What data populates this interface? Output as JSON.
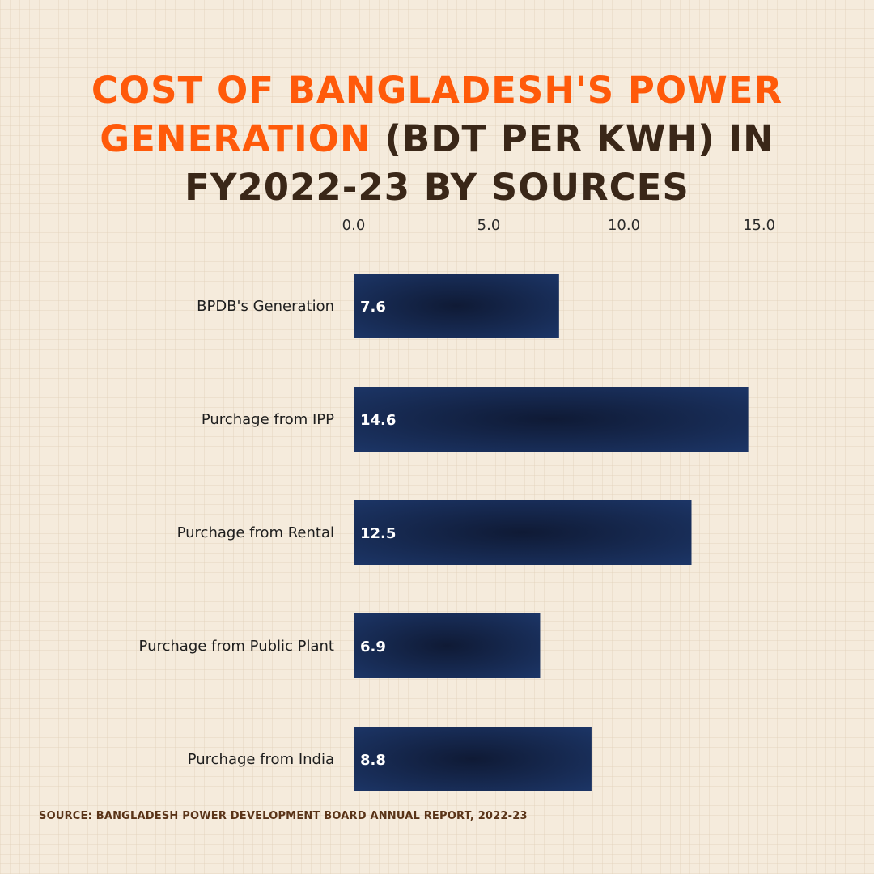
{
  "title": {
    "part1": "COST OF BANGLADESH'S POWER GENERATION",
    "part2": " (BDT PER KWH) IN FY2022-23 BY SOURCES"
  },
  "source": "SOURCE: BANGLADESH POWER DEVELOPMENT BOARD ANNUAL REPORT, 2022-23",
  "colors": {
    "accent": "#ff5a0a",
    "title": "#3a2718",
    "bar_dark": "#0f1a35",
    "bar_light": "#1c3566",
    "background": "#f5ebdc"
  },
  "chart_data": {
    "type": "bar",
    "orientation": "horizontal",
    "categories": [
      "BPDB's Generation",
      "Purchage from IPP",
      "Purchage from Rental",
      "Purchage from Public Plant",
      "Purchage from India"
    ],
    "values": [
      7.6,
      14.6,
      12.5,
      6.9,
      8.8
    ],
    "value_labels": [
      "7.6",
      "14.6",
      "12.5",
      "6.9",
      "8.8"
    ],
    "xticks": [
      "0.0",
      "5.0",
      "10.0",
      "15.0"
    ],
    "xtick_values": [
      0,
      5,
      10,
      15
    ],
    "xlim": [
      0,
      15
    ],
    "x_axis_position": "top",
    "grid": false,
    "legend": "none"
  }
}
